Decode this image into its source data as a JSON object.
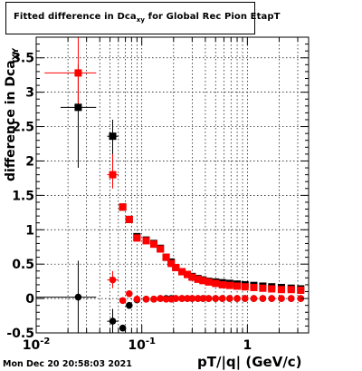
{
  "title": {
    "text_main": "Fitted difference in Dca",
    "text_sub": "xy",
    "text_rest": " for Global Rec Pion EtapT"
  },
  "footer": {
    "timestamp": "Mon Dec 20 20:58:03 2021"
  },
  "axes": {
    "ylabel_main": "difference in Dca",
    "ylabel_sub": "XY",
    "xlabel": "pT/|q| (GeV/c)"
  },
  "colors": {
    "series_red": "#ff0000",
    "series_black": "#000000"
  },
  "chart_data": {
    "type": "scatter",
    "xscale": "log",
    "xlim": [
      0.01,
      3.8
    ],
    "ylim": [
      -0.5,
      3.8
    ],
    "grid": true,
    "x_ticks": [
      {
        "value": 0.01,
        "label": "10",
        "sup": "-2"
      },
      {
        "value": 0.1,
        "label": "10",
        "sup": "-1"
      },
      {
        "value": 1,
        "label": "1",
        "sup": ""
      }
    ],
    "y_ticks": [
      {
        "value": -0.5,
        "label": "-0.5"
      },
      {
        "value": 0,
        "label": "0"
      },
      {
        "value": 0.5,
        "label": "0.5"
      },
      {
        "value": 1,
        "label": "1"
      },
      {
        "value": 1.5,
        "label": "1.5"
      },
      {
        "value": 2,
        "label": "2"
      },
      {
        "value": 2.5,
        "label": "2.5"
      },
      {
        "value": 3,
        "label": "3"
      },
      {
        "value": 3.5,
        "label": "3.5"
      }
    ],
    "series": [
      {
        "color": "#000000",
        "marker": "square",
        "points": [
          {
            "x": 0.025,
            "y": 2.78,
            "ex": [
              0.017,
              0.037
            ],
            "ey": [
              1.9,
              3.4
            ]
          },
          {
            "x": 0.053,
            "y": 2.36,
            "ex": [
              0.047,
              0.06
            ],
            "ey": [
              2.0,
              2.6
            ]
          },
          {
            "x": 0.066,
            "y": 1.33
          },
          {
            "x": 0.076,
            "y": 1.15
          },
          {
            "x": 0.09,
            "y": 0.9
          },
          {
            "x": 0.11,
            "y": 0.85
          },
          {
            "x": 0.13,
            "y": 0.8
          },
          {
            "x": 0.15,
            "y": 0.73
          },
          {
            "x": 0.17,
            "y": 0.6
          },
          {
            "x": 0.19,
            "y": 0.53
          },
          {
            "x": 0.21,
            "y": 0.45
          },
          {
            "x": 0.24,
            "y": 0.39
          },
          {
            "x": 0.27,
            "y": 0.35
          },
          {
            "x": 0.3,
            "y": 0.32
          },
          {
            "x": 0.34,
            "y": 0.29
          },
          {
            "x": 0.38,
            "y": 0.27
          },
          {
            "x": 0.43,
            "y": 0.25
          },
          {
            "x": 0.5,
            "y": 0.24
          },
          {
            "x": 0.58,
            "y": 0.23
          },
          {
            "x": 0.68,
            "y": 0.22
          },
          {
            "x": 0.8,
            "y": 0.21
          },
          {
            "x": 0.95,
            "y": 0.2
          },
          {
            "x": 1.15,
            "y": 0.19
          },
          {
            "x": 1.4,
            "y": 0.18
          },
          {
            "x": 1.7,
            "y": 0.17
          },
          {
            "x": 2.1,
            "y": 0.16
          },
          {
            "x": 2.6,
            "y": 0.15
          },
          {
            "x": 3.2,
            "y": 0.14
          }
        ]
      },
      {
        "color": "#ff0000",
        "marker": "square",
        "points": [
          {
            "x": 0.025,
            "y": 3.28,
            "ex": [
              0.012,
              0.037
            ],
            "ey": [
              2.8,
              3.8
            ]
          },
          {
            "x": 0.053,
            "y": 1.8,
            "ex": [
              0.047,
              0.06
            ],
            "ey": [
              1.6,
              2.1
            ]
          },
          {
            "x": 0.066,
            "y": 1.33
          },
          {
            "x": 0.076,
            "y": 1.15
          },
          {
            "x": 0.09,
            "y": 0.88
          },
          {
            "x": 0.11,
            "y": 0.84
          },
          {
            "x": 0.13,
            "y": 0.79
          },
          {
            "x": 0.15,
            "y": 0.72
          },
          {
            "x": 0.17,
            "y": 0.6
          },
          {
            "x": 0.19,
            "y": 0.51
          },
          {
            "x": 0.21,
            "y": 0.45
          },
          {
            "x": 0.24,
            "y": 0.39
          },
          {
            "x": 0.27,
            "y": 0.35
          },
          {
            "x": 0.3,
            "y": 0.31
          },
          {
            "x": 0.34,
            "y": 0.28
          },
          {
            "x": 0.38,
            "y": 0.26
          },
          {
            "x": 0.43,
            "y": 0.24
          },
          {
            "x": 0.5,
            "y": 0.22
          },
          {
            "x": 0.58,
            "y": 0.2
          },
          {
            "x": 0.68,
            "y": 0.19
          },
          {
            "x": 0.8,
            "y": 0.18
          },
          {
            "x": 0.95,
            "y": 0.17
          },
          {
            "x": 1.15,
            "y": 0.16
          },
          {
            "x": 1.4,
            "y": 0.15
          },
          {
            "x": 1.7,
            "y": 0.14
          },
          {
            "x": 2.1,
            "y": 0.13
          },
          {
            "x": 2.6,
            "y": 0.13
          },
          {
            "x": 3.2,
            "y": 0.12
          }
        ]
      },
      {
        "color": "#000000",
        "marker": "circle",
        "points": [
          {
            "x": 0.025,
            "y": 0.02,
            "ex": [
              0.01,
              0.037
            ],
            "ey": [
              -0.5,
              0.55
            ]
          },
          {
            "x": 0.053,
            "y": -0.33,
            "ex": [
              0.047,
              0.06
            ],
            "ey": [
              -0.5,
              -0.15
            ]
          },
          {
            "x": 0.066,
            "y": -0.43
          },
          {
            "x": 0.076,
            "y": -0.1
          },
          {
            "x": 0.09,
            "y": -0.02
          },
          {
            "x": 0.11,
            "y": -0.01
          },
          {
            "x": 0.13,
            "y": -0.01
          },
          {
            "x": 0.15,
            "y": 0.0
          },
          {
            "x": 0.17,
            "y": 0.0
          },
          {
            "x": 0.19,
            "y": 0.0
          },
          {
            "x": 0.21,
            "y": 0.0
          },
          {
            "x": 0.24,
            "y": 0.0
          },
          {
            "x": 0.27,
            "y": 0.0
          },
          {
            "x": 0.3,
            "y": 0.0
          },
          {
            "x": 0.34,
            "y": 0.0
          },
          {
            "x": 0.38,
            "y": 0.0
          },
          {
            "x": 0.43,
            "y": 0.0
          },
          {
            "x": 0.5,
            "y": 0.0
          },
          {
            "x": 0.58,
            "y": 0.0
          },
          {
            "x": 0.68,
            "y": 0.0
          },
          {
            "x": 0.8,
            "y": 0.0
          },
          {
            "x": 0.95,
            "y": 0.0
          },
          {
            "x": 1.15,
            "y": 0.0
          },
          {
            "x": 1.4,
            "y": 0.0
          },
          {
            "x": 1.7,
            "y": 0.0
          },
          {
            "x": 2.1,
            "y": 0.0
          },
          {
            "x": 2.6,
            "y": 0.0
          },
          {
            "x": 3.2,
            "y": 0.0
          }
        ]
      },
      {
        "color": "#ff0000",
        "marker": "circle",
        "points": [
          {
            "x": 0.053,
            "y": 0.27,
            "ex": [
              0.047,
              0.06
            ],
            "ey": [
              0.15,
              0.4
            ]
          },
          {
            "x": 0.066,
            "y": -0.03
          },
          {
            "x": 0.076,
            "y": 0.07
          },
          {
            "x": 0.09,
            "y": -0.01
          },
          {
            "x": 0.11,
            "y": -0.01
          },
          {
            "x": 0.13,
            "y": -0.01
          },
          {
            "x": 0.15,
            "y": 0.0
          },
          {
            "x": 0.17,
            "y": -0.01
          },
          {
            "x": 0.19,
            "y": -0.01
          },
          {
            "x": 0.21,
            "y": 0.0
          },
          {
            "x": 0.24,
            "y": 0.0
          },
          {
            "x": 0.27,
            "y": 0.0
          },
          {
            "x": 0.3,
            "y": 0.0
          },
          {
            "x": 0.34,
            "y": 0.0
          },
          {
            "x": 0.38,
            "y": 0.0
          },
          {
            "x": 0.43,
            "y": 0.0
          },
          {
            "x": 0.5,
            "y": 0.0
          },
          {
            "x": 0.58,
            "y": 0.0
          },
          {
            "x": 0.68,
            "y": 0.0
          },
          {
            "x": 0.8,
            "y": 0.0
          },
          {
            "x": 0.95,
            "y": 0.0
          },
          {
            "x": 1.15,
            "y": 0.0
          },
          {
            "x": 1.4,
            "y": 0.0
          },
          {
            "x": 1.7,
            "y": 0.0
          },
          {
            "x": 2.1,
            "y": 0.0
          },
          {
            "x": 2.6,
            "y": 0.0
          },
          {
            "x": 3.2,
            "y": 0.0
          }
        ]
      }
    ]
  }
}
